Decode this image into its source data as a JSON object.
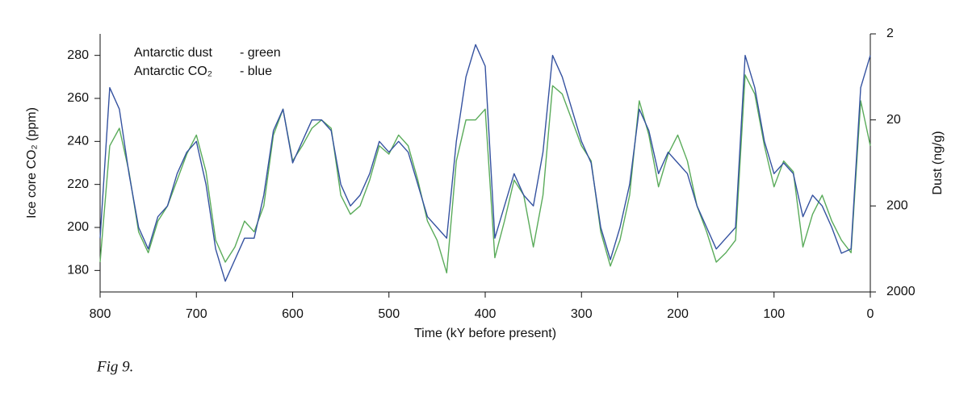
{
  "chart_data": {
    "type": "line",
    "x_label": "Time (kY before present)",
    "y_label": "Ice core CO₂ (ppm)",
    "y2_label": "Dust (ng/g)",
    "caption": "Fig 9.",
    "legend_notes": [
      "- green",
      "- blue"
    ],
    "x": [
      0,
      10,
      20,
      30,
      40,
      50,
      60,
      70,
      80,
      90,
      100,
      110,
      120,
      130,
      140,
      150,
      160,
      170,
      180,
      190,
      200,
      210,
      220,
      230,
      240,
      250,
      260,
      270,
      280,
      290,
      300,
      310,
      320,
      330,
      340,
      350,
      360,
      370,
      380,
      390,
      400,
      410,
      420,
      430,
      440,
      450,
      460,
      470,
      480,
      490,
      500,
      510,
      520,
      530,
      540,
      550,
      560,
      570,
      580,
      590,
      600,
      610,
      620,
      630,
      640,
      650,
      660,
      670,
      680,
      690,
      700,
      710,
      720,
      730,
      740,
      750,
      760,
      770,
      780,
      790,
      800
    ],
    "series": [
      {
        "name": "Antarctic dust",
        "color": "#5aab5a",
        "axis": "y2",
        "values": [
          40,
          12,
          700,
          500,
          300,
          150,
          250,
          600,
          80,
          60,
          120,
          40,
          10,
          6,
          500,
          700,
          900,
          400,
          200,
          60,
          30,
          50,
          120,
          30,
          12,
          150,
          500,
          1000,
          400,
          60,
          40,
          20,
          10,
          8,
          150,
          600,
          150,
          100,
          300,
          800,
          15,
          20,
          20,
          60,
          1200,
          500,
          300,
          100,
          40,
          30,
          50,
          40,
          100,
          200,
          250,
          150,
          25,
          20,
          25,
          40,
          60,
          15,
          30,
          200,
          400,
          300,
          600,
          900,
          500,
          80,
          30,
          50,
          100,
          200,
          300,
          700,
          400,
          80,
          25,
          40,
          900
        ]
      },
      {
        "name": "Antarctic CO₂",
        "color": "#3552a0",
        "axis": "y",
        "values": [
          280,
          265,
          190,
          188,
          200,
          210,
          215,
          205,
          225,
          230,
          225,
          240,
          265,
          280,
          200,
          195,
          190,
          200,
          210,
          225,
          230,
          235,
          225,
          245,
          255,
          220,
          200,
          185,
          200,
          230,
          240,
          255,
          270,
          280,
          235,
          210,
          215,
          225,
          210,
          195,
          275,
          285,
          270,
          240,
          195,
          200,
          205,
          220,
          235,
          240,
          235,
          240,
          225,
          215,
          210,
          220,
          245,
          250,
          250,
          240,
          230,
          255,
          245,
          215,
          195,
          195,
          185,
          175,
          190,
          220,
          240,
          235,
          225,
          210,
          205,
          190,
          200,
          225,
          255,
          265,
          195
        ]
      }
    ],
    "xlim": [
      800,
      0
    ],
    "xticks": [
      800,
      700,
      600,
      500,
      400,
      300,
      200,
      100,
      0
    ],
    "ylim": [
      170,
      290
    ],
    "yticks": [
      180,
      200,
      220,
      240,
      260,
      280
    ],
    "y2lim": [
      2,
      2000
    ],
    "y2ticks": [
      2,
      20,
      200,
      2000
    ],
    "y2_log": true,
    "y2_inverted": true,
    "grid": false
  }
}
